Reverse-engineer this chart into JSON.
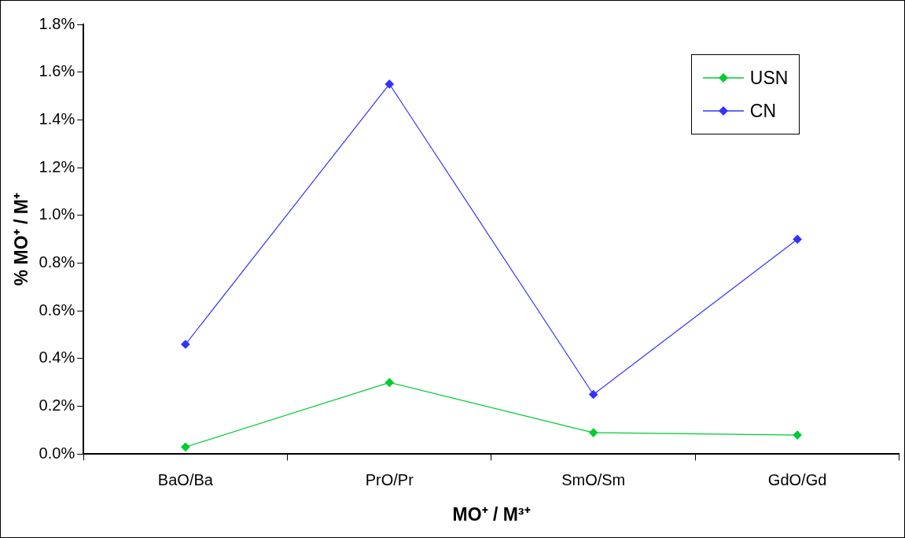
{
  "chart_data": {
    "type": "line",
    "xlabel": "MO⁺ / M³⁺",
    "ylabel": "% MO⁺ / M⁺",
    "categories": [
      "BaO/Ba",
      "PrO/Pr",
      "SmO/Sm",
      "GdO/Gd"
    ],
    "series": [
      {
        "name": "USN",
        "color": "#00cc33",
        "values": [
          0.03,
          0.3,
          0.09,
          0.08
        ]
      },
      {
        "name": "CN",
        "color": "#3333ff",
        "values": [
          0.46,
          1.55,
          0.25,
          0.9
        ]
      }
    ],
    "ylim": [
      0,
      1.8
    ],
    "yticks": [
      {
        "value": 0,
        "label": "0.0%"
      },
      {
        "value": 0.2,
        "label": "0.2%"
      },
      {
        "value": 0.4,
        "label": "0.4%"
      },
      {
        "value": 0.6,
        "label": "0.6%"
      },
      {
        "value": 0.8,
        "label": "0.8%"
      },
      {
        "value": 1.0,
        "label": "1.0%"
      },
      {
        "value": 1.2,
        "label": "1.2%"
      },
      {
        "value": 1.4,
        "label": "1.4%"
      },
      {
        "value": 1.6,
        "label": "1.6%"
      },
      {
        "value": 1.8,
        "label": "1.8%"
      }
    ],
    "grid": false,
    "legend": "top right",
    "marker": "diamond",
    "line_style": "solid"
  }
}
